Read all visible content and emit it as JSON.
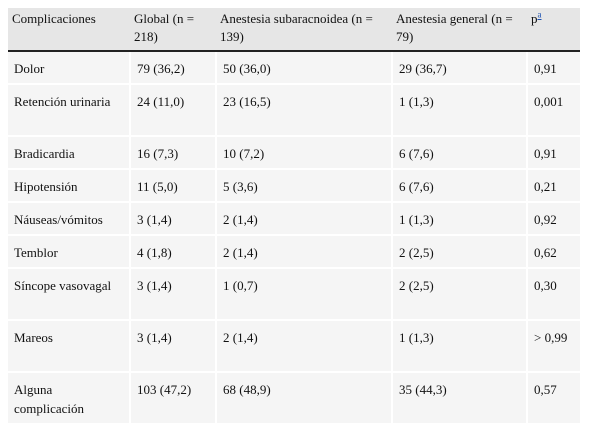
{
  "table": {
    "headers": [
      "Complicaciones",
      "Global (n = 218)",
      "Anestesia subaracnoidea (n = 139)",
      "Anestesia general (n = 79)",
      "p"
    ],
    "p_footnote": "a",
    "rows": [
      {
        "cells": [
          "Dolor",
          "79 (36,2)",
          "50 (36,0)",
          "29 (36,7)",
          "0,91"
        ]
      },
      {
        "cells": [
          "Retención urinaria",
          "24 (11,0)",
          "23 (16,5)",
          "1 (1,3)",
          "0,001"
        ]
      },
      {
        "cells": [
          "Bradicardia",
          "16 (7,3)",
          "10 (7,2)",
          "6 (7,6)",
          "0,91"
        ]
      },
      {
        "cells": [
          "Hipotensión",
          "11 (5,0)",
          "5 (3,6)",
          "6 (7,6)",
          "0,21"
        ]
      },
      {
        "cells": [
          "Náuseas/vómitos",
          "3 (1,4)",
          "2 (1,4)",
          "1 (1,3)",
          "0,92"
        ]
      },
      {
        "cells": [
          "Temblor",
          "4 (1,8)",
          "2 (1,4)",
          "2 (2,5)",
          "0,62"
        ]
      },
      {
        "cells": [
          "Síncope vasovagal",
          "3 (1,4)",
          "1 (0,7)",
          "2 (2,5)",
          "0,30"
        ]
      },
      {
        "cells": [
          "Mareos",
          "3 (1,4)",
          "2 (1,4)",
          "1 (1,3)",
          "> 0,99"
        ]
      },
      {
        "cells": [
          "Alguna complicación",
          "103 (47,2)",
          "68 (48,9)",
          "35 (44,3)",
          "0,57"
        ]
      }
    ]
  }
}
